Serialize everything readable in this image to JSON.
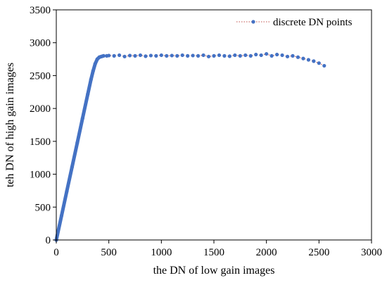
{
  "chart_data": {
    "type": "scatter",
    "title": "",
    "xlabel": "the DN of low gain images",
    "ylabel": "teh DN of high gain images",
    "xlim": [
      0,
      3000
    ],
    "ylim": [
      0,
      3500
    ],
    "xticks": [
      0,
      500,
      1000,
      1500,
      2000,
      2500,
      3000
    ],
    "yticks": [
      0,
      500,
      1000,
      1500,
      2000,
      2500,
      3000,
      3500
    ],
    "xtick_labels": [
      "0",
      "500",
      "1000",
      "1500",
      "2000",
      "2500",
      "3000"
    ],
    "ytick_labels": [
      "0",
      "500",
      "1000",
      "1500",
      "2000",
      "2500",
      "3000",
      "3500"
    ],
    "grid": false,
    "legend_position": "top-right",
    "series": [
      {
        "name": "discrete DN points",
        "color": "#4472C4",
        "line_color": "#C0504D",
        "line_style": "dotted",
        "marker": "circle",
        "x": [
          0,
          50,
          100,
          150,
          200,
          250,
          300,
          330,
          350,
          370,
          390,
          410,
          430,
          450,
          480,
          500,
          550,
          600,
          650,
          700,
          750,
          800,
          850,
          900,
          950,
          1000,
          1050,
          1100,
          1150,
          1200,
          1250,
          1300,
          1350,
          1400,
          1450,
          1500,
          1550,
          1600,
          1650,
          1700,
          1750,
          1800,
          1850,
          1900,
          1950,
          2000,
          2050,
          2100,
          2150,
          2200,
          2250,
          2300,
          2350,
          2400,
          2450,
          2500,
          2550
        ],
        "y": [
          0,
          370,
          740,
          1110,
          1480,
          1850,
          2220,
          2440,
          2570,
          2680,
          2750,
          2780,
          2790,
          2800,
          2800,
          2805,
          2800,
          2810,
          2790,
          2805,
          2800,
          2810,
          2795,
          2805,
          2800,
          2810,
          2800,
          2805,
          2800,
          2810,
          2800,
          2805,
          2800,
          2810,
          2790,
          2800,
          2810,
          2800,
          2795,
          2810,
          2800,
          2810,
          2800,
          2820,
          2810,
          2830,
          2800,
          2820,
          2810,
          2790,
          2800,
          2780,
          2760,
          2740,
          2720,
          2690,
          2650
        ]
      }
    ]
  }
}
